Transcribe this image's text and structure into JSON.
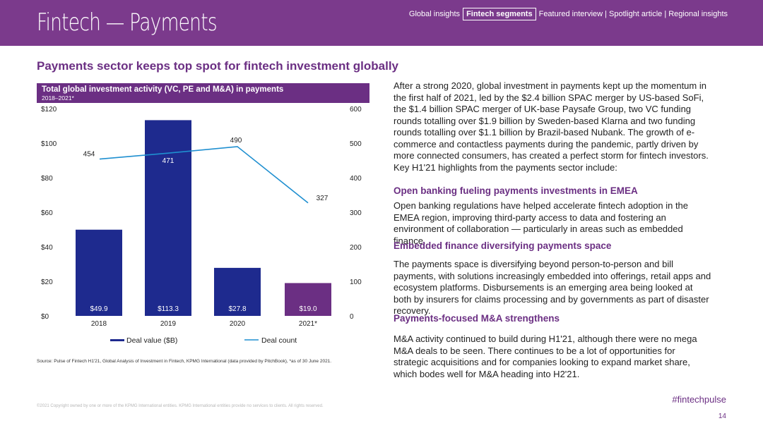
{
  "header": {
    "title": "Fintech — Payments",
    "nav": {
      "global": "Global insights",
      "segments": "Fintech segments",
      "rest": "Featured interview | Spotlight article | Regional insights"
    }
  },
  "heading": "Payments sector keeps top spot for fintech investment globally",
  "chart_box": {
    "title": "Total global investment activity (VC, PE and M&A) in payments",
    "subtitle": "2018–2021*"
  },
  "colors": {
    "brand": "#7b3a8c",
    "bar": "#1e2a8e",
    "bar_highlight": "#6b2f83",
    "line": "#1f8fd0"
  },
  "chart_data": {
    "type": "bar",
    "title": "Total global investment activity (VC, PE and M&A) in payments",
    "subtitle": "2018–2021*",
    "categories": [
      "2018",
      "2019",
      "2020",
      "2021*"
    ],
    "series": [
      {
        "name": "Deal value ($B)",
        "type": "bar",
        "axis": "left",
        "values": [
          49.9,
          113.3,
          27.8,
          19.0
        ],
        "labels": [
          "$49.9",
          "$113.3",
          "$27.8",
          "$19.0"
        ]
      },
      {
        "name": "Deal count",
        "type": "line",
        "axis": "right",
        "values": [
          454,
          471,
          490,
          327
        ],
        "labels": [
          "454",
          "471",
          "490",
          "327"
        ]
      }
    ],
    "y_left": {
      "range": [
        0,
        120
      ],
      "ticks": [
        "$0",
        "$20",
        "$40",
        "$60",
        "$80",
        "$100",
        "$120"
      ]
    },
    "y_right": {
      "range": [
        0,
        600
      ],
      "ticks": [
        "0",
        "100",
        "200",
        "300",
        "400",
        "500",
        "600"
      ]
    },
    "legend": "bottom",
    "grid": false
  },
  "source": "Source: Pulse of Fintech H1'21, Global Analysis of Investment in Fintech, KPMG International (data provided by PitchBook), *as of 30 June 2021.",
  "copyright": "©2021 Copyright owned by one or more of the KPMG International entities. KPMG International entities provide no services to clients. All rights reserved.",
  "right": {
    "intro": "After a strong 2020, global investment in payments kept up the momentum in the first half of 2021, led by the $2.4 billion SPAC merger by US-based SoFi, the $1.4 billion SPAC merger of UK-base Paysafe Group, two VC funding rounds totalling over $1.9 billion by Sweden-based Klarna and two funding rounds totalling over $1.1 billion by Brazil-based Nubank. The growth of e-commerce and contactless payments during the pandemic, partly driven by more connected consumers, has created a perfect storm for fintech investors. Key H1'21 highlights from the payments sector include:",
    "h1": "Open banking fueling payments investments in EMEA",
    "p1": "Open banking regulations have helped accelerate fintech adoption in the EMEA region, improving third-party access to data and fostering an environment of collaboration — particularly in areas such as embedded finance.",
    "h2": "Embedded finance diversifying payments space",
    "p2": "The payments space is diversifying beyond person-to-person and bill payments, with solutions increasingly embedded into offerings, retail apps and ecosystem platforms. Disbursements is an emerging area being looked at both by insurers for claims processing and by governments as part of disaster recovery.",
    "h3": "Payments-focused M&A strengthens",
    "p3": "M&A activity continued to build during H1'21, although there were no mega M&A deals to be seen. There continues to be a lot of opportunities for strategic acquisitions and for companies looking to expand market share, which bodes well for M&A heading into H2'21."
  },
  "footer": {
    "hashtag": "#fintechpulse",
    "page": "14"
  }
}
